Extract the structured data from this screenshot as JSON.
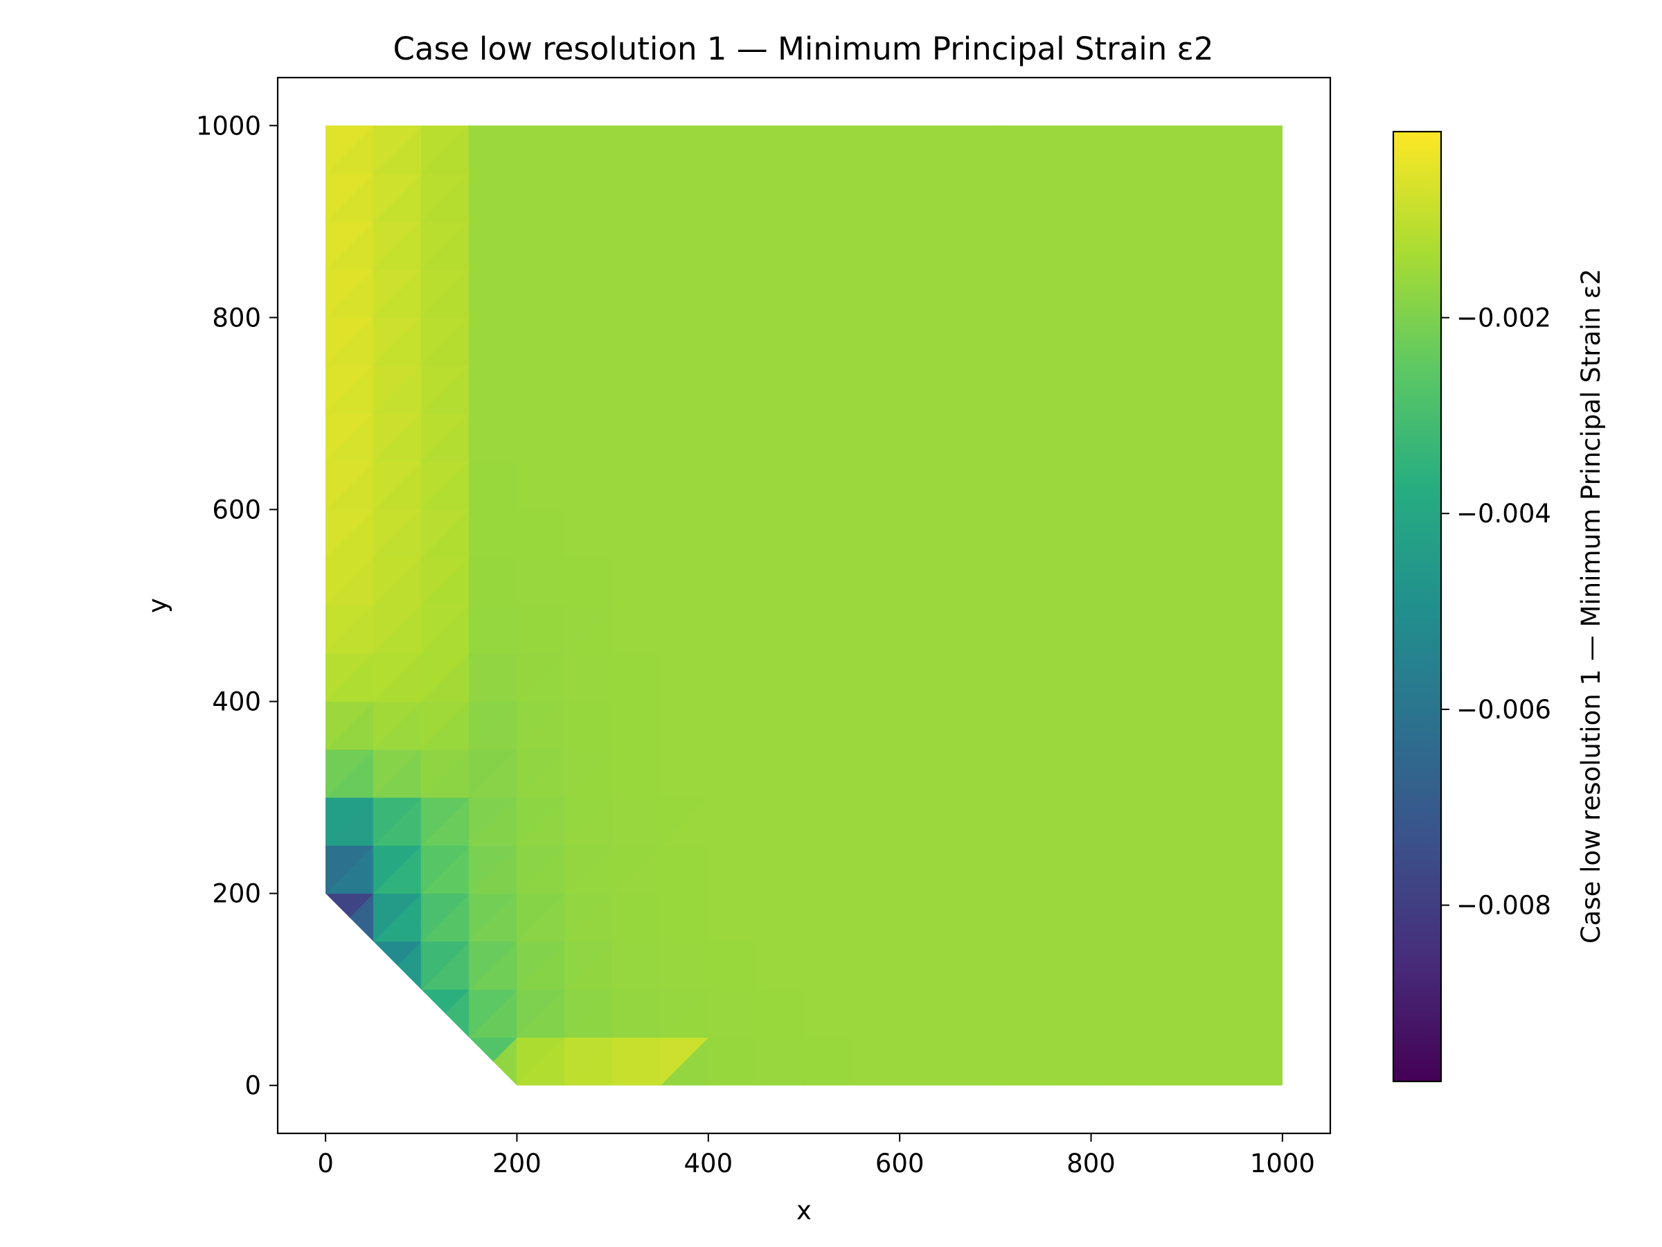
{
  "chart_data": {
    "type": "heatmap",
    "title": "Case low resolution 1 — Minimum Principal Strain ε2",
    "xlabel": "x",
    "ylabel": "y",
    "xlim": [
      -50,
      1050
    ],
    "ylim": [
      -50,
      1050
    ],
    "x_ticks": [
      0,
      200,
      400,
      600,
      800,
      1000
    ],
    "y_ticks": [
      0,
      200,
      400,
      600,
      800,
      1000
    ],
    "x_tick_labels": [
      "0",
      "200",
      "400",
      "600",
      "800",
      "1000"
    ],
    "y_tick_labels": [
      "0",
      "200",
      "400",
      "600",
      "800",
      "1000"
    ],
    "colormap": "viridis",
    "colorbar": {
      "label": "Case low resolution 1 — Minimum Principal Strain ε2",
      "range": [
        -0.0098,
        -0.0001
      ],
      "ticks": [
        -0.008,
        -0.006,
        -0.004,
        -0.002
      ],
      "tick_labels": [
        "−0.008",
        "−0.006",
        "−0.004",
        "−0.002"
      ]
    },
    "domain_outline": [
      [
        0,
        200
      ],
      [
        0,
        1000
      ],
      [
        1000,
        1000
      ],
      [
        1000,
        0
      ],
      [
        200,
        0
      ]
    ],
    "grid": false,
    "legend": "none"
  }
}
